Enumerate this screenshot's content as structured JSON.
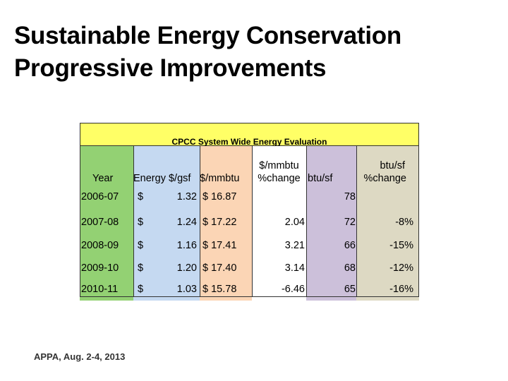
{
  "slide": {
    "title_line1": "Sustainable Energy Conservation",
    "title_line2": "Progressive Improvements",
    "footer": "APPA, Aug. 2-4, 2013"
  },
  "table": {
    "banner": "CPCC System Wide Energy Evaluation",
    "headers": {
      "year": "Year",
      "energy_gsf": "Energy $/gsf",
      "mmbtu": "$/mmbtu",
      "mmbtu_change_line1": "$/mmbtu",
      "mmbtu_change_line2": "%change",
      "btu_sf": "btu/sf",
      "btu_change_line1": "btu/sf",
      "btu_change_line2": "%change"
    },
    "rows": [
      {
        "year": "2006-07",
        "gsf_sym": "$",
        "gsf": "1.32",
        "mmbtu": "$ 16.87",
        "mmbtu_chg": "",
        "btu": "78",
        "btu_chg": ""
      },
      {
        "year": "2007-08",
        "gsf_sym": "$",
        "gsf": "1.24",
        "mmbtu": "$ 17.22",
        "mmbtu_chg": "2.04",
        "btu": "72",
        "btu_chg": "-8%"
      },
      {
        "year": "2008-09",
        "gsf_sym": "$",
        "gsf": "1.16",
        "mmbtu": "$ 17.41",
        "mmbtu_chg": "3.21",
        "btu": "66",
        "btu_chg": "-15%"
      },
      {
        "year": "2009-10",
        "gsf_sym": "$",
        "gsf": "1.20",
        "mmbtu": "$ 17.40",
        "mmbtu_chg": "3.14",
        "btu": "68",
        "btu_chg": "-12%"
      },
      {
        "year": "2010-11",
        "gsf_sym": "$",
        "gsf": "1.03",
        "mmbtu": "$ 15.78",
        "mmbtu_chg": "-6.46",
        "btu": "65",
        "btu_chg": "-16%"
      }
    ]
  }
}
